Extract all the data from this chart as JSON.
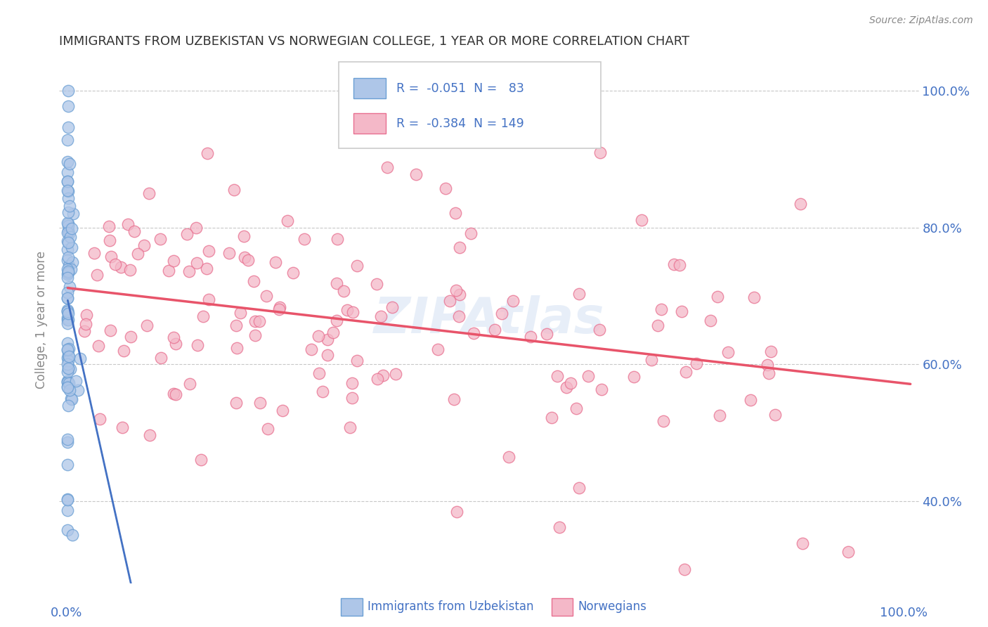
{
  "title": "IMMIGRANTS FROM UZBEKISTAN VS NORWEGIAN COLLEGE, 1 YEAR OR MORE CORRELATION CHART",
  "source": "Source: ZipAtlas.com",
  "ylabel": "College, 1 year or more",
  "legend_label1": "Immigrants from Uzbekistan",
  "legend_label2": "Norwegians",
  "R1": -0.051,
  "N1": 83,
  "R2": -0.384,
  "N2": 149,
  "color_blue_fill": "#aec6e8",
  "color_blue_edge": "#6b9fd4",
  "color_blue_line": "#4472c4",
  "color_pink_fill": "#f4b8c8",
  "color_pink_edge": "#e87090",
  "color_pink_line": "#e8546a",
  "color_text_blue": "#4472c4",
  "color_grid": "#c8c8c8",
  "figsize": [
    14.06,
    8.92
  ],
  "dpi": 100,
  "xlim": [
    0.0,
    1.0
  ],
  "ylim": [
    0.28,
    1.05
  ],
  "yticks": [
    0.4,
    0.6,
    0.8,
    1.0
  ],
  "ytick_labels": [
    "40.0%",
    "60.0%",
    "80.0%",
    "100.0%"
  ],
  "seed_blue": 42,
  "seed_pink": 99
}
